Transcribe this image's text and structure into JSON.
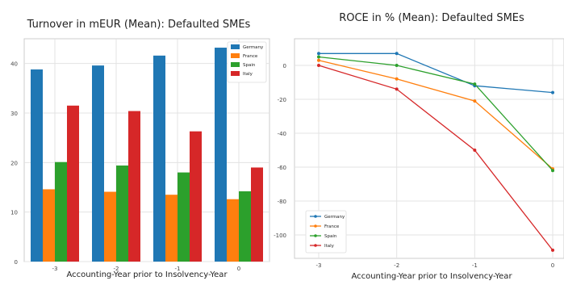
{
  "chart_data": [
    {
      "type": "bar",
      "title": "Turnover in mEUR (Mean): Defaulted SMEs",
      "xlabel": "Accounting-Year prior to Insolvency-Year",
      "ylabel": "",
      "categories": [
        "-3",
        "-2",
        "-1",
        "0"
      ],
      "ylim": [
        0,
        45
      ],
      "yticks": [
        0,
        10,
        20,
        30,
        40
      ],
      "grid": true,
      "legend_position": "top-right",
      "series": [
        {
          "name": "Germany",
          "color": "#1f77b4",
          "values": [
            38.8,
            39.6,
            41.6,
            43.2
          ]
        },
        {
          "name": "France",
          "color": "#ff7f0e",
          "values": [
            14.6,
            14.1,
            13.5,
            12.6
          ]
        },
        {
          "name": "Spain",
          "color": "#2ca02c",
          "values": [
            20.1,
            19.4,
            18.0,
            14.2
          ]
        },
        {
          "name": "Italy",
          "color": "#d62728",
          "values": [
            31.5,
            30.4,
            26.3,
            19.0
          ]
        }
      ]
    },
    {
      "type": "line",
      "title": "ROCE in % (Mean): Defaulted SMEs",
      "xlabel": "Accounting-Year prior to Insolvency-Year",
      "ylabel": "",
      "x": [
        -3,
        -2,
        -1,
        0
      ],
      "xticks": [
        "-3",
        "-2",
        "-1",
        "0"
      ],
      "ylim": [
        -110,
        10
      ],
      "yticks": [
        0,
        -20,
        -40,
        -60,
        -80,
        -100
      ],
      "grid": true,
      "legend_position": "bottom-left",
      "series": [
        {
          "name": "Germany",
          "color": "#1f77b4",
          "values": [
            7.0,
            7.0,
            -12.0,
            -16.0
          ]
        },
        {
          "name": "France",
          "color": "#ff7f0e",
          "values": [
            3.0,
            -8.0,
            -21.0,
            -61.0
          ]
        },
        {
          "name": "Spain",
          "color": "#2ca02c",
          "values": [
            5.0,
            0.0,
            -11.0,
            -62.0
          ]
        },
        {
          "name": "Italy",
          "color": "#d62728",
          "values": [
            0.0,
            -14.0,
            -50.0,
            -109.0
          ]
        }
      ]
    }
  ]
}
